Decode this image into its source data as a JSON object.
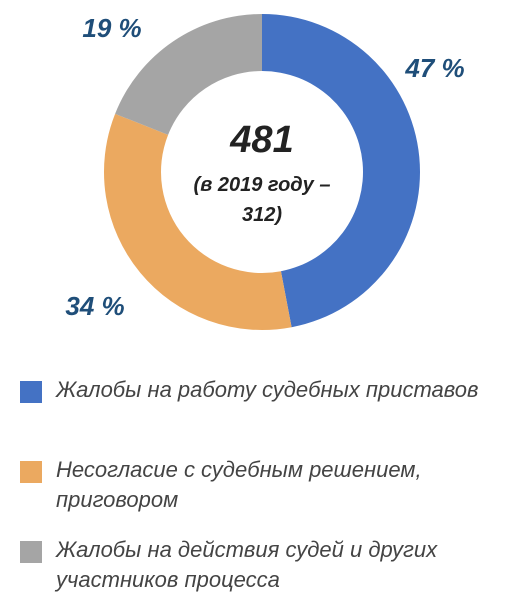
{
  "chart_data": {
    "type": "pie",
    "donut": true,
    "categories": [
      "Жалобы на работу судебных приставов",
      "Несогласие с судебным решением, приговором",
      "Жалобы на действия судей и других участников процесса"
    ],
    "values": [
      47,
      34,
      19
    ],
    "value_labels": [
      "47 %",
      "34 %",
      "19 %"
    ],
    "colors": [
      "#4472c4",
      "#eba960",
      "#a5a5a5"
    ],
    "center_text": [
      "481",
      "(в 2019 году – 312)"
    ]
  }
}
